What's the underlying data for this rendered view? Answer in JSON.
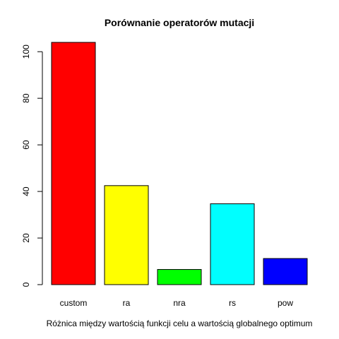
{
  "chart_data": {
    "type": "bar",
    "title": "Porównanie operatorów mutacji",
    "xlabel": "Różnica między wartością funkcji celu a wartością globalnego optimum",
    "ylabel": "",
    "categories": [
      "custom",
      "ra",
      "nra",
      "rs",
      "pow"
    ],
    "values": [
      104,
      42.5,
      6.5,
      34.7,
      11.2
    ],
    "colors": [
      "#FF0000",
      "#FFFF00",
      "#00FF00",
      "#00FFFF",
      "#0000FF"
    ],
    "ylim": [
      0,
      104
    ],
    "yticks": [
      0,
      20,
      40,
      60,
      80,
      100
    ],
    "grid": false,
    "legend": "none"
  }
}
